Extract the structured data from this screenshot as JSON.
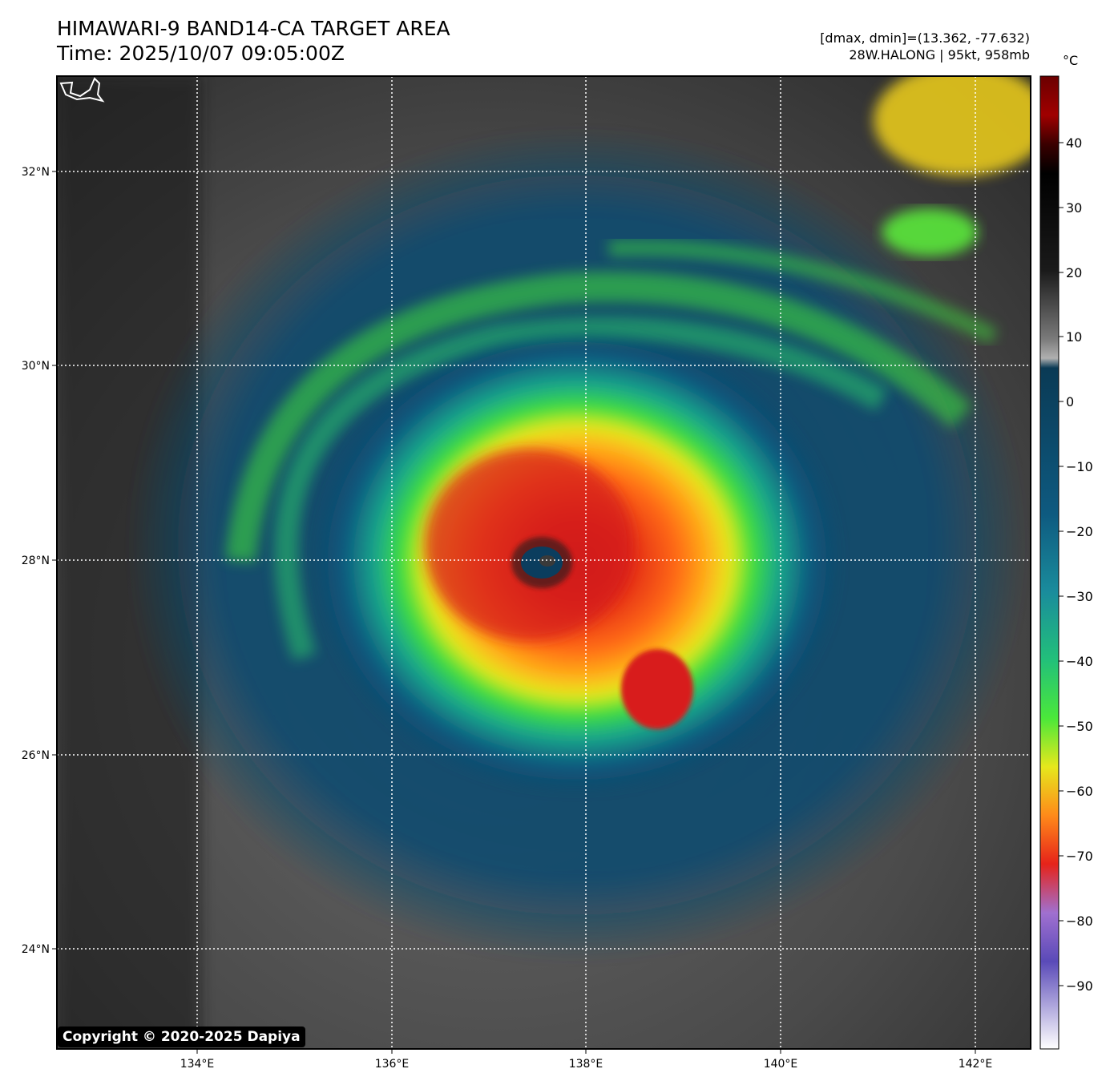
{
  "header": {
    "title_line1": "HIMAWARI-9 BAND14-CA TARGET AREA",
    "title_line2": "Time: 2025/10/07 09:05:00Z",
    "info_line1": "[dmax, dmin]=(13.362, -77.632)",
    "info_line2": "28W.HALONG | 95kt, 958mb"
  },
  "map": {
    "lon_labels": [
      "134°E",
      "136°E",
      "138°E",
      "140°E",
      "142°E"
    ],
    "lat_labels": [
      "32°N",
      "30°N",
      "28°N",
      "26°N",
      "24°N"
    ]
  },
  "colorbar": {
    "unit": "°C",
    "ticks": [
      "40",
      "30",
      "20",
      "10",
      "0",
      "−10",
      "−20",
      "−30",
      "−40",
      "−50",
      "−60",
      "−70",
      "−80",
      "−90"
    ],
    "colors": {
      "eye": "#0b3d5e",
      "warm_ring": "#e6231a",
      "orange": "#ff8a1a",
      "yellow": "#e6e81c",
      "green": "#3fe03a",
      "cyan": "#1a8c9c",
      "blue": "#0d4a6e",
      "gray": "#5a5a5a"
    }
  },
  "footer": {
    "copyright": "Copyright © 2020-2025 Dapiya"
  }
}
